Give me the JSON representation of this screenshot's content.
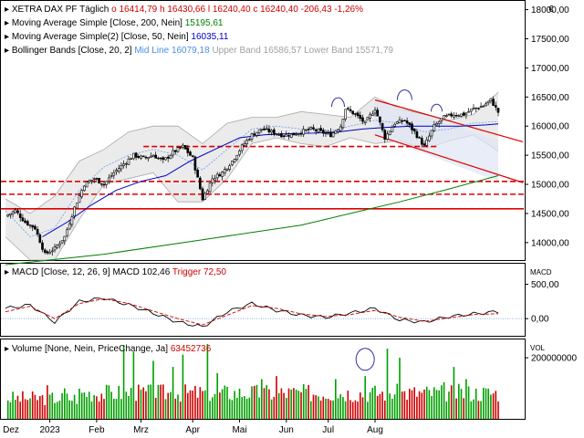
{
  "chart_data": [
    {
      "type": "candlestick",
      "title": "XETRA DAX PF",
      "interval": "Täglich",
      "quote": {
        "open_label": "o",
        "open": "16414,79",
        "high_label": "h",
        "high": "16430,66",
        "low_label": "l",
        "low": "16240,40",
        "close_label": "c",
        "close": "16240,40",
        "change": "-206,43",
        "change_pct": "-1,26%"
      },
      "currency": "€",
      "yticks": [
        "18000,00",
        "17500,00",
        "17000,00",
        "16500,00",
        "16000,00",
        "15500,00",
        "15000,00",
        "14500,00",
        "14000,00"
      ],
      "ylim": [
        13700,
        18150
      ],
      "indicators": [
        {
          "label": "Moving Average Simple",
          "params": "[Close, 200, Nein]",
          "value": "15195,61",
          "color": "#008000"
        },
        {
          "label": "Moving Average Simple(2)",
          "params": "[Close, 50, Nein]",
          "value": "16035,11",
          "color": "#0000c0"
        },
        {
          "label": "Bollinger Bands",
          "params": "[Close, 20, 2]",
          "mid_label": "Mid Line",
          "mid": "16079,18",
          "upper_label": "Upper Band",
          "upper": "16586,57",
          "lower_label": "Lower Band",
          "lower": "15571,79",
          "mid_color": "#4a90e2",
          "band_color": "#a0a0a0"
        }
      ],
      "support_lines": [
        15650,
        15050,
        14830,
        14580
      ],
      "ma200": [
        [
          0,
          13620
        ],
        [
          40,
          13800
        ],
        [
          80,
          14050
        ],
        [
          120,
          14300
        ],
        [
          140,
          14500
        ],
        [
          160,
          14700
        ],
        [
          180,
          14920
        ],
        [
          200,
          15150
        ]
      ],
      "ma50": [
        [
          15,
          14100
        ],
        [
          25,
          14350
        ],
        [
          35,
          14650
        ],
        [
          45,
          14900
        ],
        [
          55,
          15050
        ],
        [
          65,
          15150
        ],
        [
          75,
          15400
        ],
        [
          85,
          15600
        ],
        [
          95,
          15800
        ],
        [
          105,
          15850
        ],
        [
          115,
          15870
        ],
        [
          125,
          15880
        ],
        [
          135,
          15900
        ],
        [
          145,
          15950
        ],
        [
          155,
          15980
        ],
        [
          165,
          16000
        ],
        [
          175,
          16000
        ],
        [
          185,
          16000
        ],
        [
          195,
          16020
        ],
        [
          200,
          16040
        ]
      ],
      "bollinger_mid": [
        [
          0,
          14550
        ],
        [
          10,
          14100
        ],
        [
          20,
          14250
        ],
        [
          30,
          14900
        ],
        [
          40,
          15300
        ],
        [
          50,
          15500
        ],
        [
          60,
          15600
        ],
        [
          70,
          15500
        ],
        [
          80,
          15250
        ],
        [
          90,
          15600
        ],
        [
          100,
          15950
        ],
        [
          110,
          16000
        ],
        [
          120,
          15950
        ],
        [
          130,
          15900
        ],
        [
          140,
          16000
        ],
        [
          150,
          16100
        ],
        [
          160,
          16050
        ],
        [
          170,
          15900
        ],
        [
          180,
          15950
        ],
        [
          190,
          16050
        ],
        [
          200,
          16080
        ]
      ],
      "bollinger_upper": [
        [
          0,
          14750
        ],
        [
          10,
          14500
        ],
        [
          20,
          14800
        ],
        [
          30,
          15400
        ],
        [
          40,
          15600
        ],
        [
          50,
          15900
        ],
        [
          60,
          16000
        ],
        [
          70,
          16000
        ],
        [
          80,
          15700
        ],
        [
          90,
          16050
        ],
        [
          100,
          16150
        ],
        [
          110,
          16150
        ],
        [
          120,
          16250
        ],
        [
          130,
          16200
        ],
        [
          140,
          16150
        ],
        [
          150,
          16500
        ],
        [
          160,
          16300
        ],
        [
          170,
          16200
        ],
        [
          180,
          16100
        ],
        [
          190,
          16200
        ],
        [
          200,
          16580
        ]
      ],
      "bollinger_lower": [
        [
          0,
          14100
        ],
        [
          10,
          13700
        ],
        [
          20,
          13700
        ],
        [
          30,
          14400
        ],
        [
          40,
          15000
        ],
        [
          50,
          15100
        ],
        [
          60,
          15200
        ],
        [
          70,
          14700
        ],
        [
          80,
          14700
        ],
        [
          90,
          15100
        ],
        [
          100,
          15700
        ],
        [
          110,
          15800
        ],
        [
          120,
          15700
        ],
        [
          130,
          15650
        ],
        [
          140,
          15800
        ],
        [
          150,
          15700
        ],
        [
          160,
          15750
        ],
        [
          170,
          15600
        ],
        [
          180,
          15750
        ],
        [
          190,
          15850
        ],
        [
          200,
          15570
        ]
      ],
      "close_path": [
        [
          0,
          14450
        ],
        [
          4,
          14550
        ],
        [
          8,
          14350
        ],
        [
          12,
          14250
        ],
        [
          16,
          13800
        ],
        [
          20,
          13900
        ],
        [
          24,
          14100
        ],
        [
          28,
          14600
        ],
        [
          32,
          15000
        ],
        [
          36,
          15100
        ],
        [
          40,
          15000
        ],
        [
          44,
          15200
        ],
        [
          48,
          15350
        ],
        [
          52,
          15500
        ],
        [
          56,
          15450
        ],
        [
          60,
          15500
        ],
        [
          64,
          15400
        ],
        [
          68,
          15550
        ],
        [
          72,
          15650
        ],
        [
          76,
          15450
        ],
        [
          80,
          14750
        ],
        [
          84,
          15100
        ],
        [
          88,
          15200
        ],
        [
          92,
          15400
        ],
        [
          96,
          15650
        ],
        [
          100,
          15850
        ],
        [
          104,
          15950
        ],
        [
          108,
          15900
        ],
        [
          112,
          15850
        ],
        [
          116,
          15850
        ],
        [
          120,
          15900
        ],
        [
          124,
          15950
        ],
        [
          128,
          15900
        ],
        [
          132,
          15850
        ],
        [
          136,
          16000
        ],
        [
          138,
          16300
        ],
        [
          142,
          16200
        ],
        [
          146,
          16050
        ],
        [
          150,
          16300
        ],
        [
          154,
          15800
        ],
        [
          158,
          16050
        ],
        [
          162,
          16100
        ],
        [
          166,
          15900
        ],
        [
          170,
          15650
        ],
        [
          174,
          16000
        ],
        [
          178,
          16150
        ],
        [
          182,
          16200
        ],
        [
          186,
          16200
        ],
        [
          190,
          16300
        ],
        [
          194,
          16350
        ],
        [
          197,
          16450
        ],
        [
          200,
          16240
        ]
      ]
    },
    {
      "type": "line",
      "title": "MACD",
      "params": "[Close, 12, 26, 9]",
      "value_label": "MACD",
      "value": "102,46",
      "trigger_label": "Trigger",
      "trigger": "72,50",
      "axis_title": "MACD",
      "yticks": [
        "500,00",
        "0,00"
      ],
      "ylim": [
        -250,
        800
      ],
      "macd": [
        [
          0,
          150
        ],
        [
          10,
          200
        ],
        [
          20,
          -50
        ],
        [
          30,
          250
        ],
        [
          40,
          300
        ],
        [
          50,
          200
        ],
        [
          60,
          80
        ],
        [
          70,
          -50
        ],
        [
          80,
          -120
        ],
        [
          90,
          100
        ],
        [
          100,
          220
        ],
        [
          110,
          120
        ],
        [
          120,
          50
        ],
        [
          130,
          20
        ],
        [
          140,
          80
        ],
        [
          150,
          150
        ],
        [
          160,
          -20
        ],
        [
          170,
          -50
        ],
        [
          180,
          30
        ],
        [
          190,
          70
        ],
        [
          200,
          102
        ]
      ],
      "trigger_line": [
        [
          0,
          100
        ],
        [
          10,
          180
        ],
        [
          20,
          0
        ],
        [
          30,
          220
        ],
        [
          40,
          290
        ],
        [
          50,
          220
        ],
        [
          60,
          110
        ],
        [
          70,
          0
        ],
        [
          80,
          -90
        ],
        [
          90,
          50
        ],
        [
          100,
          190
        ],
        [
          110,
          150
        ],
        [
          120,
          70
        ],
        [
          130,
          30
        ],
        [
          140,
          60
        ],
        [
          150,
          120
        ],
        [
          160,
          20
        ],
        [
          170,
          -40
        ],
        [
          180,
          10
        ],
        [
          190,
          60
        ],
        [
          200,
          72
        ]
      ]
    },
    {
      "type": "bar",
      "title": "Volume",
      "params": "[None, Nein, PriceChange, Ja]",
      "value": "63452736",
      "axis_title": "VOL",
      "yticks": [
        "200000000"
      ],
      "ylim": [
        0,
        260000000
      ]
    }
  ],
  "x_axis": {
    "labels": [
      "Dez",
      "2023",
      "Feb",
      "Mrz",
      "Apr",
      "Mai",
      "Jun",
      "Jul",
      "Aug"
    ],
    "positions": [
      -4,
      18,
      37,
      55,
      76,
      95,
      114,
      131,
      150
    ]
  }
}
